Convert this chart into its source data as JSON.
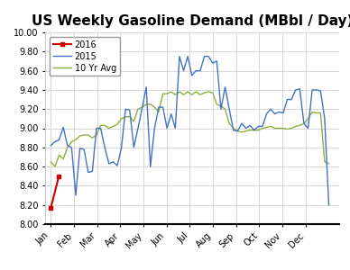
{
  "title": "US Weekly Gasoline Demand (MBbl / Day)",
  "ylim": [
    8.0,
    10.0
  ],
  "yticks": [
    8.0,
    8.2,
    8.4,
    8.6,
    8.8,
    9.0,
    9.2,
    9.4,
    9.6,
    9.8,
    10.0
  ],
  "months": [
    "Jan",
    "Feb",
    "Mar",
    "Apr",
    "May",
    "Jun",
    "Jul",
    "Aug",
    "Sep",
    "Oct",
    "Nov",
    "Dec"
  ],
  "color_2016": "#cc0000",
  "color_2015": "#4472c4",
  "color_avg": "#8db03a",
  "line_2016": [
    8.17,
    8.5
  ],
  "line_2015": [
    8.82,
    8.86,
    8.88,
    9.01,
    8.82,
    8.8,
    8.3,
    8.79,
    8.78,
    8.54,
    8.55,
    9.0,
    9.0,
    8.8,
    8.63,
    8.65,
    8.61,
    8.79,
    9.2,
    9.19,
    8.8,
    9.0,
    9.21,
    9.43,
    8.6,
    9.0,
    9.22,
    9.22,
    9.0,
    9.15,
    9.0,
    9.75,
    9.6,
    9.75,
    9.55,
    9.6,
    9.6,
    9.75,
    9.75,
    9.68,
    9.7,
    9.2,
    9.43,
    9.2,
    8.98,
    8.97,
    9.05,
    9.0,
    9.03,
    8.98,
    9.02,
    9.02,
    9.15,
    9.2,
    9.15,
    9.17,
    9.16,
    9.3,
    9.3,
    9.4,
    9.41,
    9.05,
    9.0,
    9.4,
    9.4,
    9.39,
    9.1,
    8.2
  ],
  "line_avg": [
    8.65,
    8.6,
    8.72,
    8.68,
    8.8,
    8.86,
    8.88,
    8.92,
    8.93,
    8.93,
    8.9,
    8.93,
    9.03,
    9.03,
    9.0,
    9.02,
    9.04,
    9.1,
    9.12,
    9.12,
    9.07,
    9.2,
    9.22,
    9.25,
    9.25,
    9.22,
    9.17,
    9.36,
    9.36,
    9.38,
    9.35,
    9.38,
    9.35,
    9.38,
    9.35,
    9.38,
    9.35,
    9.37,
    9.38,
    9.37,
    9.25,
    9.23,
    9.2,
    9.05,
    9.0,
    8.97,
    8.96,
    8.97,
    8.98,
    8.98,
    8.98,
    9.0,
    9.01,
    9.02,
    9.0,
    9.0,
    9.0,
    8.99,
    9.0,
    9.02,
    9.03,
    9.05,
    9.1,
    9.17,
    9.16,
    9.16,
    8.65,
    8.63
  ],
  "legend_labels": [
    "2016",
    "2015",
    "10 Yr Avg"
  ],
  "bg_color": "#ffffff",
  "grid_color": "#c8c8c8",
  "title_fontsize": 11,
  "legend_fontsize": 7,
  "tick_fontsize": 7,
  "figsize": [
    3.88,
    3.0
  ],
  "dpi": 100
}
